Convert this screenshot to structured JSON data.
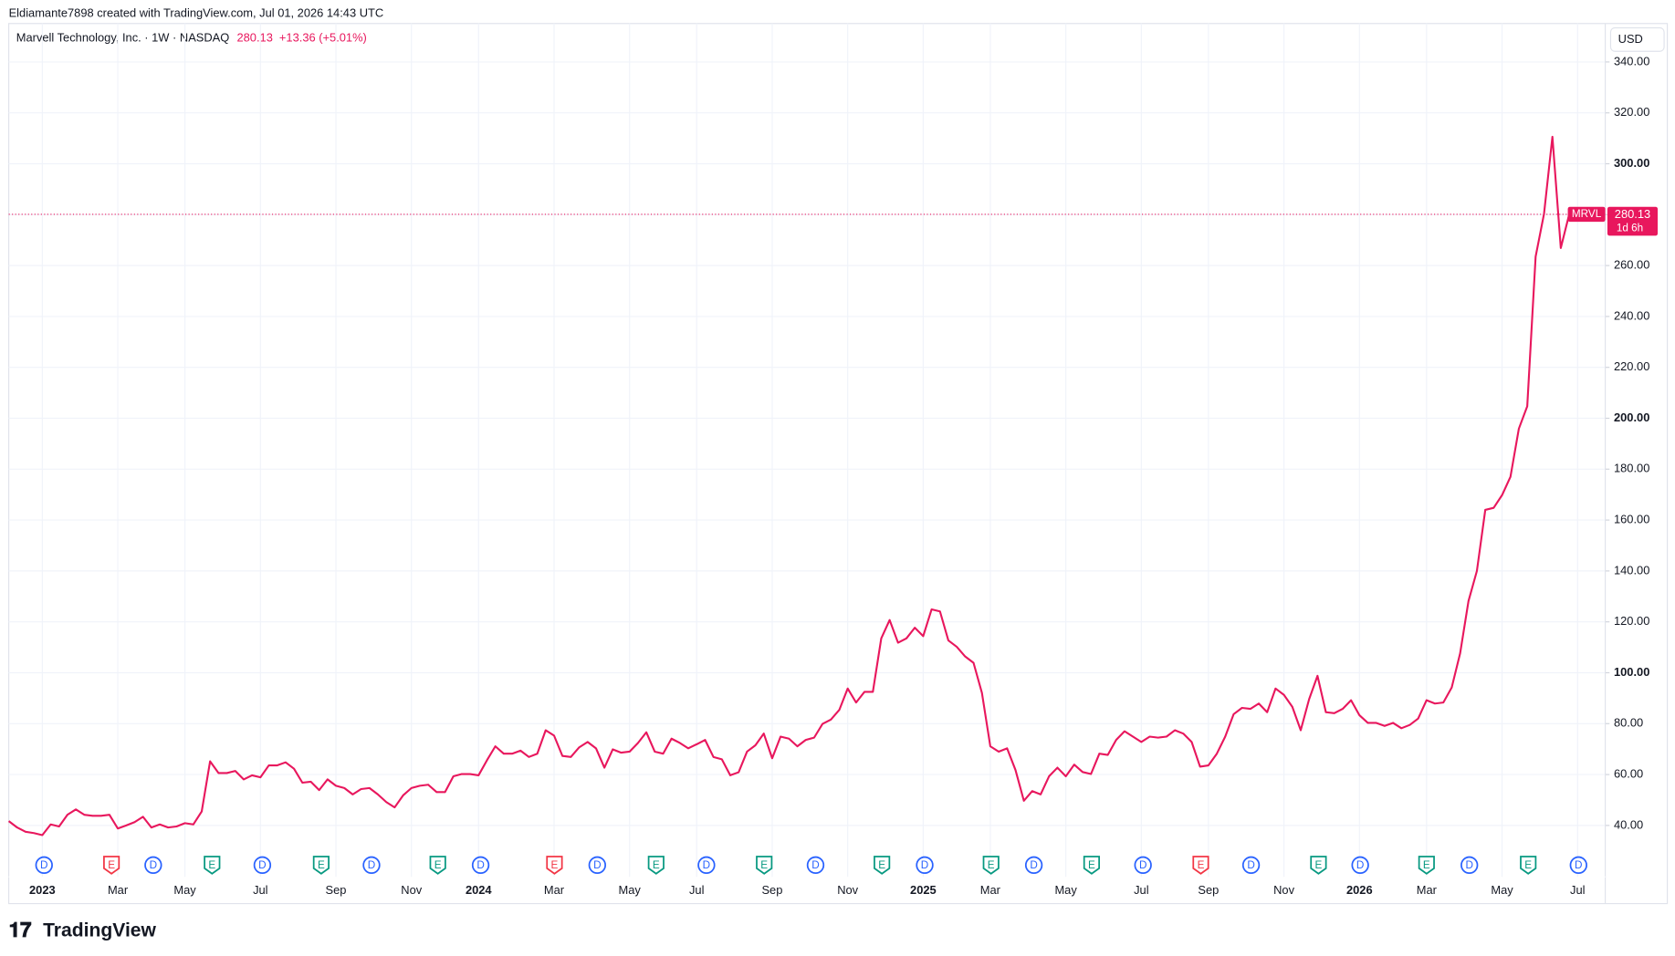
{
  "header": {
    "attribution": "Eldiamante7898 created with TradingView.com, Jul 01, 2026 14:43 UTC",
    "symbol": "Marvell Technology, Inc. · 1W · NASDAQ",
    "last_price": 280.13,
    "change": "+13.36 (+5.01%)",
    "currency": "USD"
  },
  "price_tag": {
    "ticker": "MRVL",
    "countdown": "1d 6h"
  },
  "events": [
    {
      "label": "D",
      "color": "#2962ff"
    },
    {
      "label": "E",
      "color": "#f23645"
    },
    {
      "label": "D",
      "color": "#2962ff"
    },
    {
      "label": "E",
      "color": "#089981"
    },
    {
      "label": "D",
      "color": "#2962ff"
    },
    {
      "label": "E",
      "color": "#089981"
    },
    {
      "label": "D",
      "color": "#2962ff"
    },
    {
      "label": "E",
      "color": "#089981"
    },
    {
      "label": "D",
      "color": "#2962ff"
    },
    {
      "label": "E",
      "color": "#f23645"
    },
    {
      "label": "D",
      "color": "#2962ff"
    },
    {
      "label": "E",
      "color": "#089981"
    },
    {
      "label": "D",
      "color": "#2962ff"
    },
    {
      "label": "E",
      "color": "#089981"
    },
    {
      "label": "D",
      "color": "#2962ff"
    },
    {
      "label": "E",
      "color": "#089981"
    },
    {
      "label": "D",
      "color": "#2962ff"
    },
    {
      "label": "E",
      "color": "#089981"
    },
    {
      "label": "D",
      "color": "#2962ff"
    },
    {
      "label": "E",
      "color": "#089981"
    },
    {
      "label": "D",
      "color": "#2962ff"
    },
    {
      "label": "E",
      "color": "#f23645"
    },
    {
      "label": "D",
      "color": "#2962ff"
    },
    {
      "label": "E",
      "color": "#089981"
    },
    {
      "label": "D",
      "color": "#2962ff"
    },
    {
      "label": "E",
      "color": "#089981"
    },
    {
      "label": "D",
      "color": "#2962ff"
    },
    {
      "label": "E",
      "color": "#089981"
    },
    {
      "label": "D",
      "color": "#2962ff"
    }
  ],
  "logo": "TradingView",
  "chart_data": {
    "type": "line",
    "grid": true,
    "series": [
      {
        "name": "MRVL",
        "color": "#e8175d",
        "values": [
          41.7,
          39.2,
          37.5,
          37,
          36.2,
          40.4,
          39.6,
          44.2,
          46.3,
          44.2,
          43.8,
          43.8,
          44.2,
          38.8,
          40,
          41.3,
          43.4,
          39.2,
          40.4,
          39.2,
          39.6,
          40.9,
          40.4,
          45.5,
          65.2,
          60.6,
          60.6,
          61.4,
          58.1,
          59.7,
          58.9,
          63.6,
          63.6,
          64.8,
          62.3,
          56.8,
          57.2,
          53.9,
          58.1,
          55.6,
          54.7,
          52.2,
          54.3,
          54.7,
          52.2,
          49.2,
          47.1,
          51.8,
          54.7,
          55.6,
          56,
          53.1,
          53.1,
          59.3,
          60.2,
          60.2,
          59.7,
          65.6,
          71.1,
          68.2,
          68.2,
          69.4,
          66.9,
          68.2,
          77.4,
          75.3,
          67.3,
          66.9,
          70.7,
          72.8,
          70.3,
          62.7,
          69.9,
          68.6,
          69,
          72.4,
          76.6,
          69,
          68.2,
          74.1,
          72.4,
          70.3,
          71.9,
          73.6,
          66.9,
          66,
          59.7,
          60.9,
          69,
          71.5,
          76.1,
          66.4,
          74.9,
          74.1,
          71.1,
          73.6,
          74.5,
          79.9,
          81.6,
          85.4,
          93.8,
          88.3,
          92.5,
          92.5,
          113.5,
          120.7,
          111.8,
          113.5,
          117.7,
          114.4,
          124.9,
          124.1,
          112.7,
          110.2,
          106.4,
          103.9,
          92.1,
          71.1,
          69,
          70.3,
          61.8,
          49.7,
          53.5,
          52.2,
          59.3,
          62.7,
          59.3,
          63.9,
          61,
          60.2,
          68.2,
          67.7,
          73.6,
          77,
          74.9,
          72.8,
          74.9,
          74.5,
          74.9,
          77.4,
          76.1,
          72.8,
          63.1,
          63.6,
          68.2,
          74.9,
          83.7,
          86.2,
          85.8,
          87.9,
          84.5,
          93.8,
          91.3,
          86.6,
          77.4,
          89.6,
          98.8,
          84.5,
          84.1,
          85.8,
          89.2,
          83.3,
          80.3,
          80.3,
          79.1,
          80.3,
          78.2,
          79.5,
          82,
          89.2,
          87.9,
          88.3,
          94.2,
          107.6,
          128.2,
          140,
          164,
          164.8,
          169.8,
          177,
          195.9,
          204.7,
          263.5,
          280.3,
          310.6,
          266.9,
          280.13
        ]
      }
    ],
    "xlim": [
      0,
      190.3
    ],
    "xticks": [
      {
        "value": 4,
        "label": "2023"
      },
      {
        "value": 13,
        "label": "Mar"
      },
      {
        "value": 21,
        "label": "May"
      },
      {
        "value": 30,
        "label": "Jul"
      },
      {
        "value": 39,
        "label": "Sep"
      },
      {
        "value": 48,
        "label": "Nov"
      },
      {
        "value": 56,
        "label": "2024"
      },
      {
        "value": 65,
        "label": "Mar"
      },
      {
        "value": 74,
        "label": "May"
      },
      {
        "value": 82,
        "label": "Jul"
      },
      {
        "value": 91,
        "label": "Sep"
      },
      {
        "value": 100,
        "label": "Nov"
      },
      {
        "value": 109,
        "label": "2025"
      },
      {
        "value": 117,
        "label": "Mar"
      },
      {
        "value": 126,
        "label": "May"
      },
      {
        "value": 135,
        "label": "Jul"
      },
      {
        "value": 143,
        "label": "Sep"
      },
      {
        "value": 152,
        "label": "Nov"
      },
      {
        "value": 161,
        "label": "2026"
      },
      {
        "value": 169,
        "label": "Mar"
      },
      {
        "value": 178,
        "label": "May"
      },
      {
        "value": 187,
        "label": "Jul"
      }
    ],
    "ylim": [
      32.4,
      355.1
    ],
    "yticks": [
      {
        "value": 40,
        "label": "40.00"
      },
      {
        "value": 60,
        "label": "60.00"
      },
      {
        "value": 80,
        "label": "80.00"
      },
      {
        "value": 100,
        "label": "100.00"
      },
      {
        "value": 120,
        "label": "120.00"
      },
      {
        "value": 140,
        "label": "140.00"
      },
      {
        "value": 160,
        "label": "160.00"
      },
      {
        "value": 180,
        "label": "180.00"
      },
      {
        "value": 200,
        "label": "200.00"
      },
      {
        "value": 220,
        "label": "220.00"
      },
      {
        "value": 240,
        "label": "240.00"
      },
      {
        "value": 260,
        "label": "260.00"
      },
      {
        "value": 280,
        "label": "280.00"
      },
      {
        "value": 300,
        "label": "300.00"
      },
      {
        "value": 320,
        "label": "320.00"
      },
      {
        "value": 340,
        "label": "340.00"
      }
    ]
  }
}
